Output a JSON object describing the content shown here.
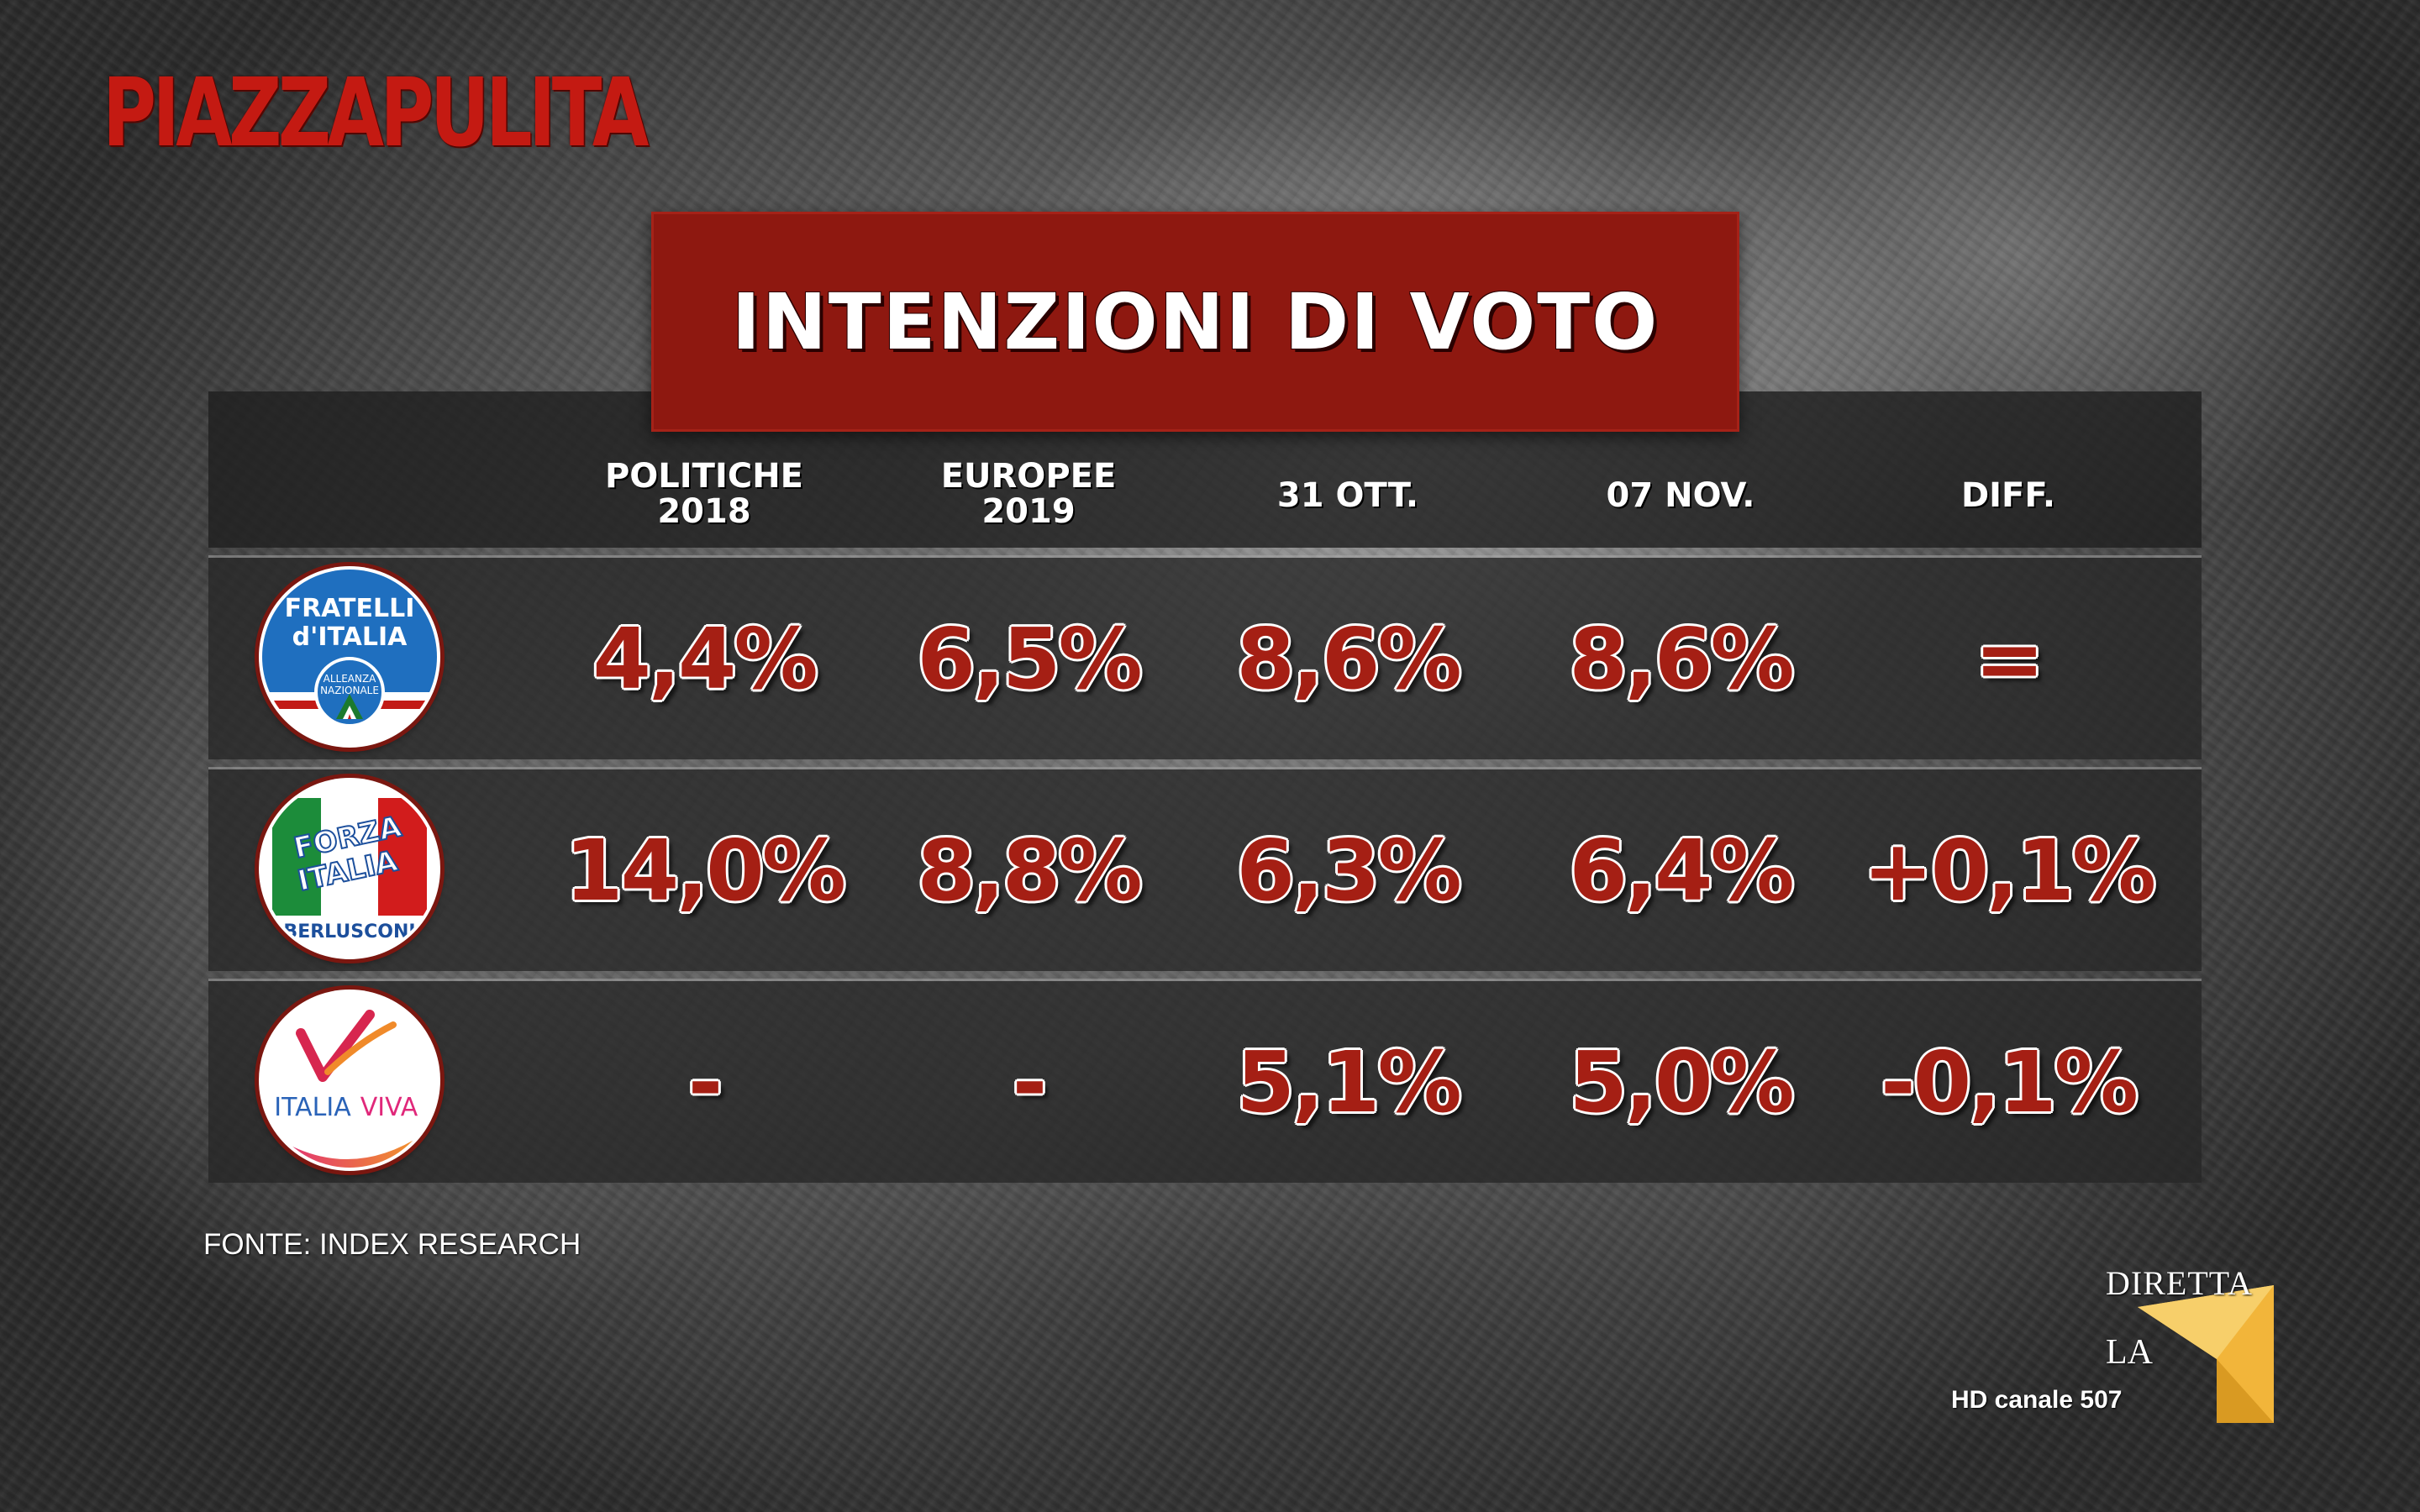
{
  "show": {
    "logo_text": "PIAZZAPULITA"
  },
  "title": "INTENZIONI DI VOTO",
  "columns": [
    {
      "line1": "POLITICHE",
      "line2": "2018"
    },
    {
      "line1": "EUROPEE",
      "line2": "2019"
    },
    {
      "line1": "31 OTT.",
      "line2": ""
    },
    {
      "line1": "07 NOV.",
      "line2": ""
    },
    {
      "line1": "DIFF.",
      "line2": ""
    }
  ],
  "rows": [
    {
      "party_logo": {
        "line1": "FRATELLI",
        "line2": "d'ITALIA",
        "line3": "ALLEANZA",
        "line4": "NAZIONALE"
      },
      "values": [
        "4,4%",
        "6,5%",
        "8,6%",
        "8,6%",
        "="
      ]
    },
    {
      "party_logo": {
        "line1": "FORZA",
        "line2": "ITALIA",
        "line3": "BERLUSCONI"
      },
      "values": [
        "14,0%",
        "8,8%",
        "6,3%",
        "6,4%",
        "+0,1%"
      ]
    },
    {
      "party_logo": {
        "line1": "ITALIA",
        "line2": "VIVA"
      },
      "values": [
        "-",
        "-",
        "5,1%",
        "5,0%",
        "-0,1%"
      ]
    }
  ],
  "source": "FONTE: INDEX RESEARCH",
  "channel": {
    "diretta": "DIRETTA",
    "la": "LA",
    "seven": "7",
    "hd": "HD canale 507"
  },
  "colors": {
    "title_bg": "#8e1810",
    "value_red": "#a51f14",
    "logo_red": "#c41a12",
    "table_bg": "#262626",
    "la7_yellow": "#f2b53a"
  }
}
